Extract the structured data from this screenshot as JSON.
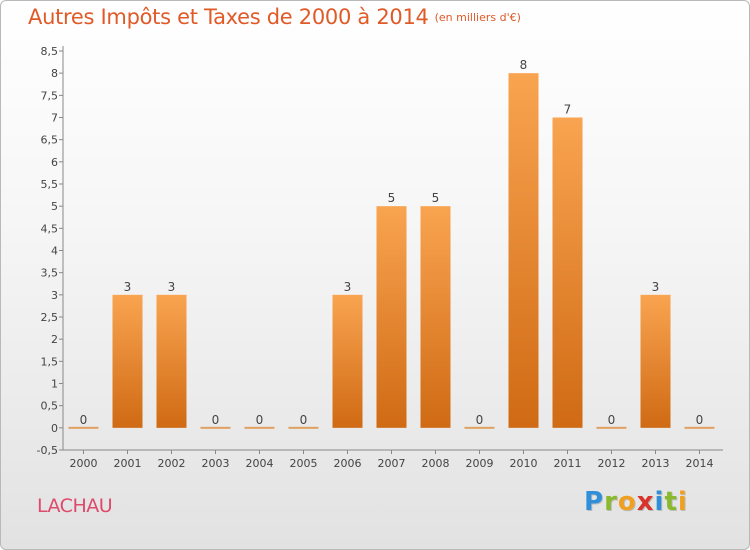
{
  "chart_data": {
    "type": "bar",
    "title": "Autres Impôts et Taxes de 2000 à 2014",
    "subtitle": "(en milliers d'€)",
    "categories": [
      "2000",
      "2001",
      "2002",
      "2003",
      "2004",
      "2005",
      "2006",
      "2007",
      "2008",
      "2009",
      "2010",
      "2011",
      "2012",
      "2013",
      "2014"
    ],
    "values": [
      0,
      3,
      3,
      0,
      0,
      0,
      3,
      5,
      5,
      0,
      8,
      7,
      0,
      3,
      0
    ],
    "ylim": [
      -0.5,
      8.5
    ],
    "yticks": [
      "-0,5",
      "0",
      "0,5",
      "1",
      "1,5",
      "2",
      "2,5",
      "3",
      "3,5",
      "4",
      "4,5",
      "5",
      "5,5",
      "6",
      "6,5",
      "7",
      "7,5",
      "8",
      "8,5"
    ],
    "grid": false,
    "bar_color": "#f08a2c"
  },
  "location": "LACHAU",
  "logo": {
    "letters": [
      "P",
      "r",
      "o",
      "x",
      "i",
      "t",
      "i"
    ],
    "colors": [
      "#2f8fd8",
      "#8ab92d",
      "#f0a020",
      "#d9342b",
      "#2f8fd8",
      "#8ab92d",
      "#f0a020"
    ]
  },
  "colors": {
    "title": "#e05a28",
    "location": "#de4a6c"
  }
}
